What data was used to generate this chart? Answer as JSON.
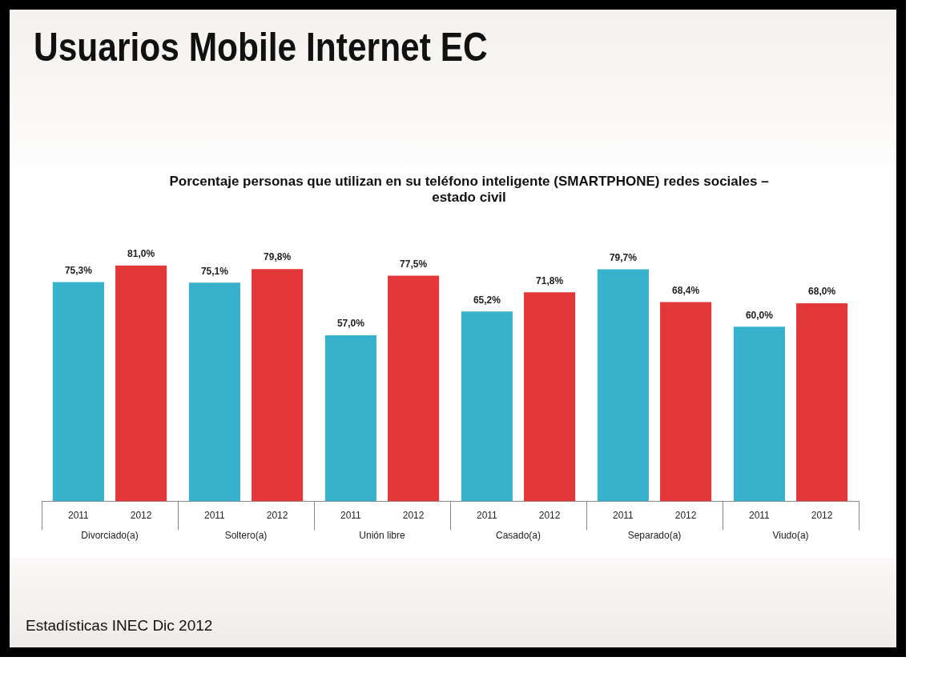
{
  "chart_data": {
    "type": "bar",
    "title": "Usuarios Mobile Internet EC",
    "subtitle": "Porcentaje personas que utilizan en su teléfono inteligente (SMARTPHONE) redes sociales – estado civil",
    "annotations": [
      "Estadísticas INEC Dic 2012"
    ],
    "categories": [
      "Divorciado(a)",
      "Soltero(a)",
      "Unión libre",
      "Casado(a)",
      "Separado(a)",
      "Viudo(a)"
    ],
    "series": [
      {
        "name": "2011",
        "color": "#38b1cc",
        "values": [
          75.3,
          75.1,
          57.0,
          65.2,
          79.7,
          60.0
        ],
        "value_labels": [
          "75,3%",
          "75,1%",
          "57,0%",
          "65,2%",
          "79,7%",
          "60,0%"
        ]
      },
      {
        "name": "2012",
        "color": "#e2383a",
        "values": [
          81.0,
          79.8,
          77.5,
          71.8,
          68.4,
          68.0
        ],
        "value_labels": [
          "81,0%",
          "79,8%",
          "77,5%",
          "71,8%",
          "68,4%",
          "68,0%"
        ]
      }
    ]
  }
}
